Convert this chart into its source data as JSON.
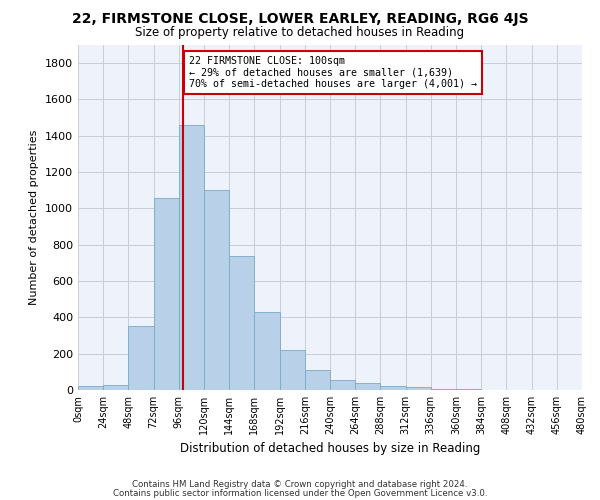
{
  "title": "22, FIRMSTONE CLOSE, LOWER EARLEY, READING, RG6 4JS",
  "subtitle": "Size of property relative to detached houses in Reading",
  "xlabel": "Distribution of detached houses by size in Reading",
  "ylabel": "Number of detached properties",
  "bar_color": "#b8d0e8",
  "bar_edge_color": "#7aaac8",
  "background_color": "#eef2fa",
  "grid_color": "#c8ccd8",
  "vline_x": 100,
  "vline_color": "#cc0000",
  "annotation_text": "22 FIRMSTONE CLOSE: 100sqm\n← 29% of detached houses are smaller (1,639)\n70% of semi-detached houses are larger (4,001) →",
  "annotation_box_color": "#ffffff",
  "annotation_box_edge": "#cc0000",
  "bin_edges": [
    0,
    24,
    48,
    72,
    96,
    120,
    144,
    168,
    192,
    216,
    240,
    264,
    288,
    312,
    336,
    360,
    384,
    408,
    432,
    456,
    480
  ],
  "bar_heights": [
    20,
    30,
    350,
    1060,
    1460,
    1100,
    740,
    430,
    220,
    110,
    55,
    40,
    20,
    15,
    8,
    4,
    2,
    1,
    0,
    0
  ],
  "ylim": [
    0,
    1900
  ],
  "yticks": [
    0,
    200,
    400,
    600,
    800,
    1000,
    1200,
    1400,
    1600,
    1800
  ],
  "xlim": [
    0,
    480
  ],
  "footer1": "Contains HM Land Registry data © Crown copyright and database right 2024.",
  "footer2": "Contains public sector information licensed under the Open Government Licence v3.0."
}
